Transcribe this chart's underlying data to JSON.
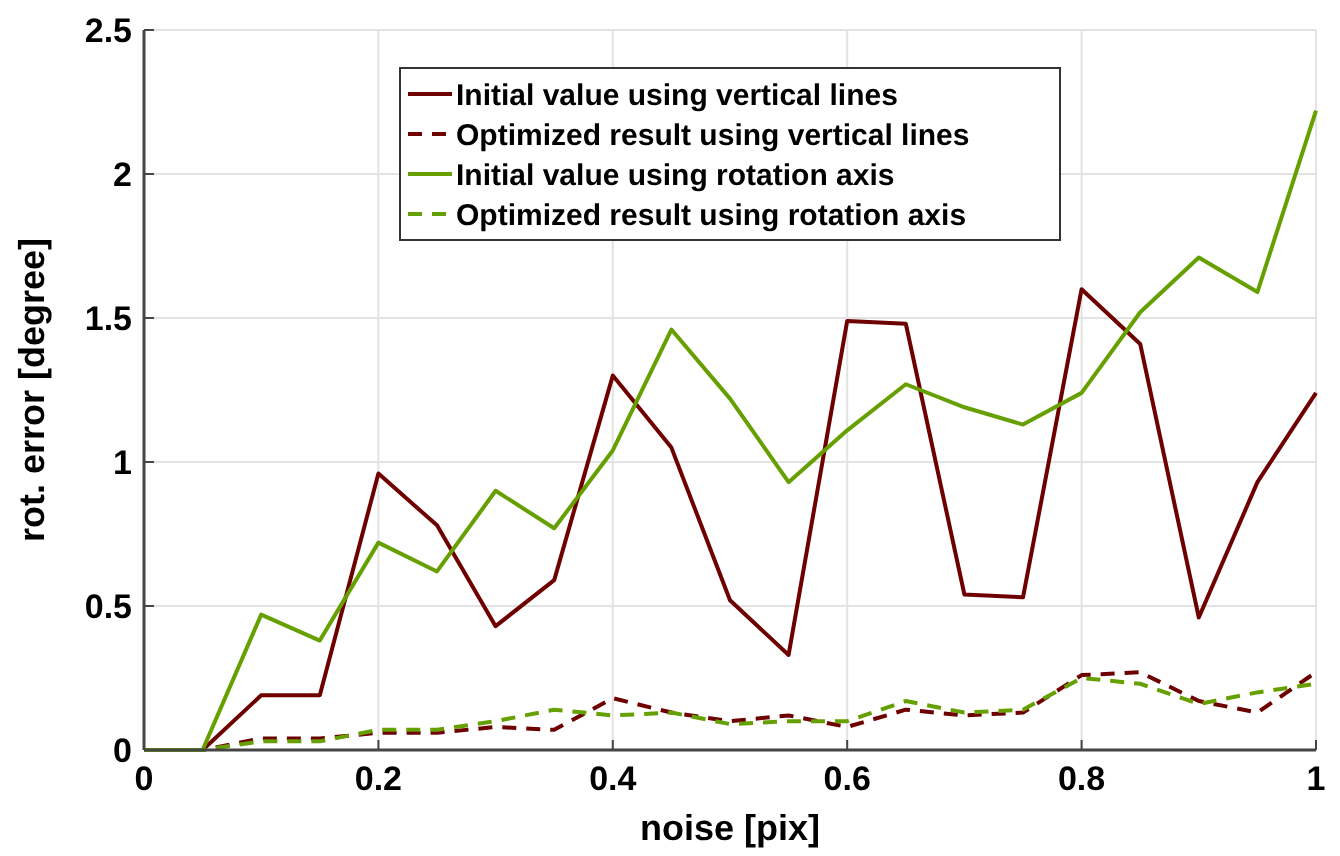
{
  "chart_data": {
    "type": "line",
    "xlabel": "noise [pix]",
    "ylabel": "rot. error [degree]",
    "x": [
      0,
      0.05,
      0.1,
      0.15,
      0.2,
      0.25,
      0.3,
      0.35,
      0.4,
      0.45,
      0.5,
      0.55,
      0.6,
      0.65,
      0.7,
      0.75,
      0.8,
      0.85,
      0.9,
      0.95,
      1
    ],
    "series": [
      {
        "name": "Initial value using vertical lines",
        "color": "#6e0000",
        "line_style": "solid",
        "values": [
          0,
          0,
          0.19,
          0.19,
          0.96,
          0.78,
          0.43,
          0.59,
          1.3,
          1.05,
          0.52,
          0.33,
          1.49,
          1.48,
          0.54,
          0.53,
          1.6,
          1.41,
          0.46,
          0.93,
          1.24
        ]
      },
      {
        "name": "Optimized result using vertical lines",
        "color": "#6e0000",
        "line_style": "dashed",
        "values": [
          0,
          0,
          0.04,
          0.04,
          0.06,
          0.06,
          0.08,
          0.07,
          0.18,
          0.13,
          0.1,
          0.12,
          0.08,
          0.14,
          0.12,
          0.13,
          0.26,
          0.27,
          0.17,
          0.13,
          0.27
        ]
      },
      {
        "name": "Initial value using rotation axis",
        "color": "#66a000",
        "line_style": "solid",
        "values": [
          0,
          0,
          0.47,
          0.38,
          0.72,
          0.62,
          0.9,
          0.77,
          1.04,
          1.46,
          1.22,
          0.93,
          1.11,
          1.27,
          1.19,
          1.13,
          1.24,
          1.52,
          1.71,
          1.59,
          2.22
        ]
      },
      {
        "name": "Optimized result using rotation axis",
        "color": "#66a000",
        "line_style": "dashed",
        "values": [
          0,
          0,
          0.03,
          0.03,
          0.07,
          0.07,
          0.1,
          0.14,
          0.12,
          0.13,
          0.09,
          0.1,
          0.1,
          0.17,
          0.13,
          0.14,
          0.25,
          0.23,
          0.16,
          0.2,
          0.23
        ]
      }
    ],
    "xlim": [
      0,
      1
    ],
    "xticks": [
      0,
      0.2,
      0.4,
      0.6,
      0.8,
      1
    ],
    "ylim": [
      0,
      2.5
    ],
    "yticks": [
      0,
      0.5,
      1,
      1.5,
      2,
      2.5
    ],
    "grid": true,
    "legend": "top",
    "marker": "none"
  }
}
